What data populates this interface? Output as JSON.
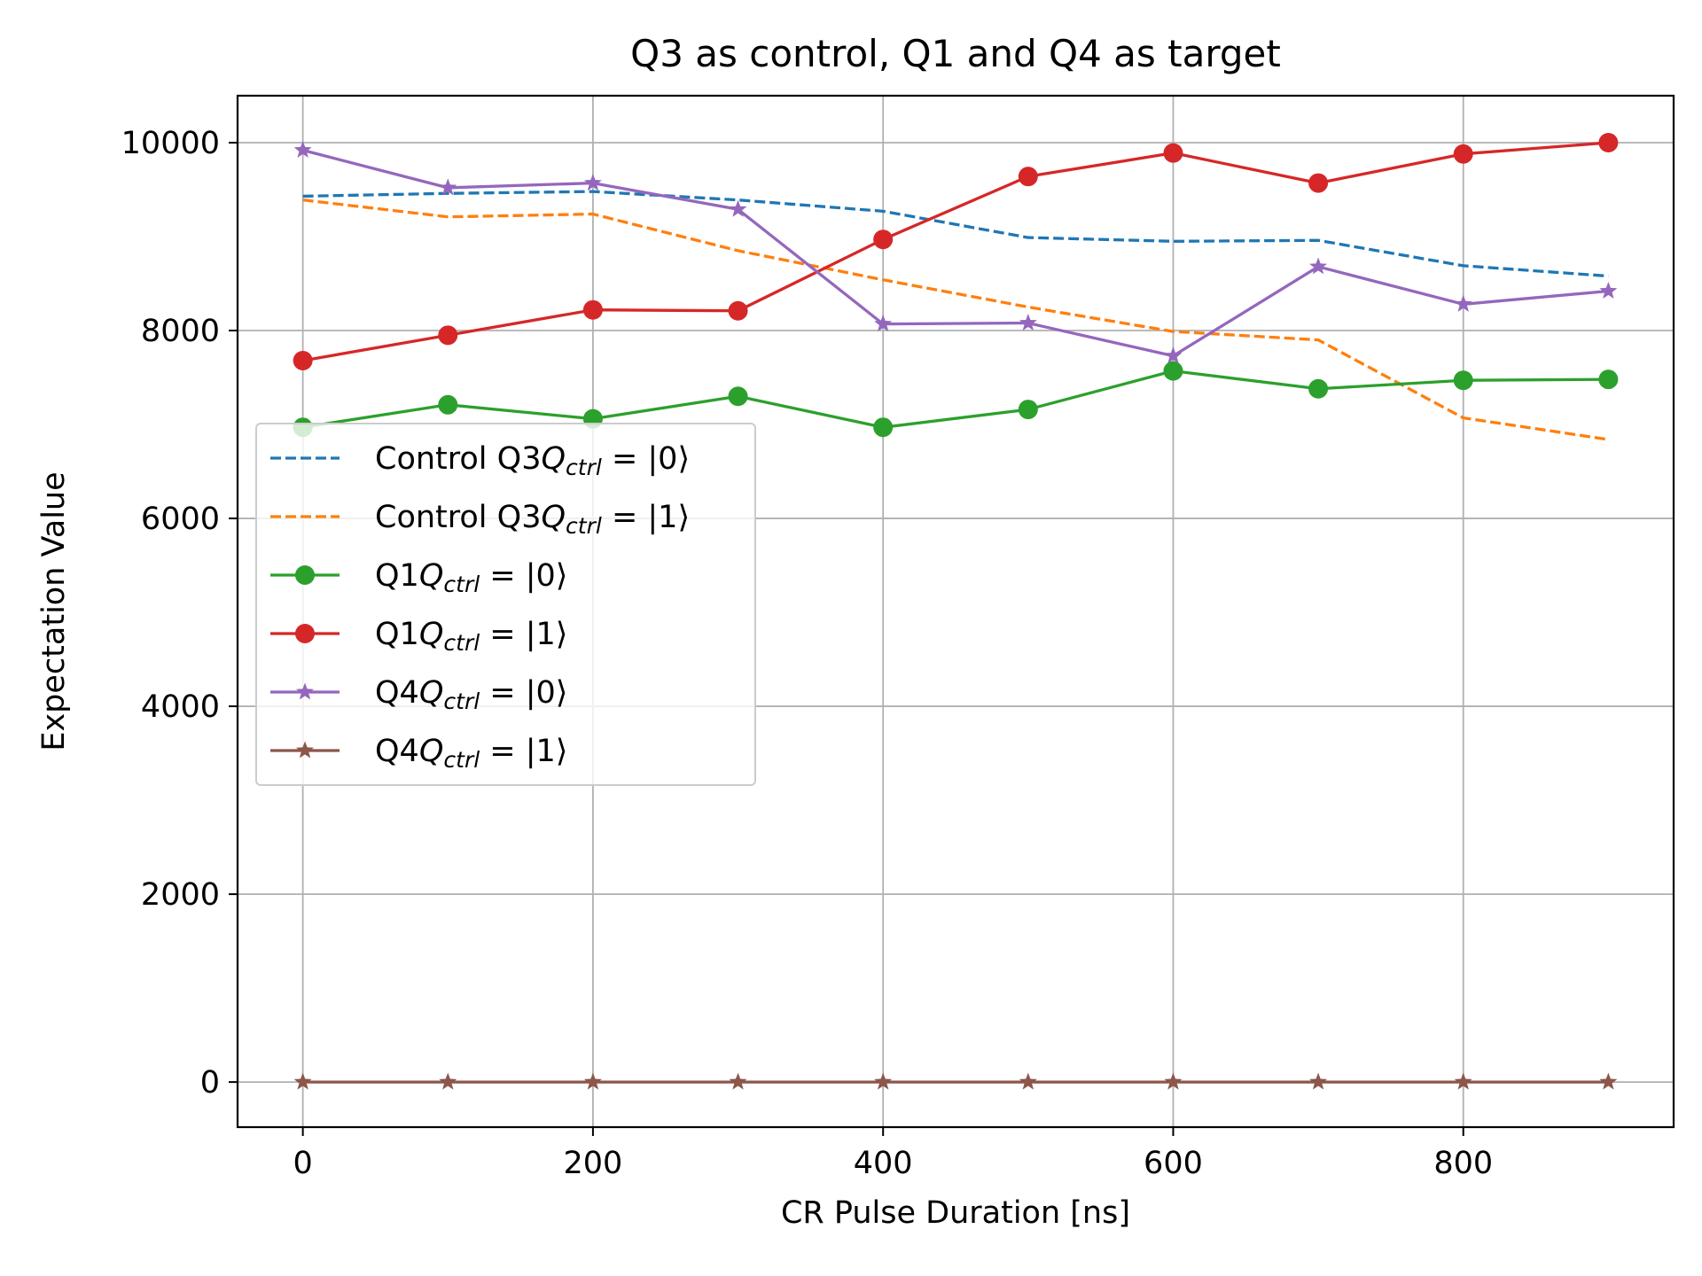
{
  "chart_data": {
    "type": "line",
    "title": "Q3 as control, Q1 and Q4 as target",
    "xlabel": "CR Pulse Duration [ns]",
    "ylabel": "Expectation Value",
    "xlim": [
      -45,
      945
    ],
    "ylim": [
      -480,
      10500
    ],
    "xticks": [
      0,
      200,
      400,
      600,
      800
    ],
    "yticks": [
      0,
      2000,
      4000,
      6000,
      8000,
      10000
    ],
    "grid": true,
    "legend_position": "center-left",
    "x": [
      0,
      100,
      200,
      300,
      400,
      500,
      600,
      700,
      800,
      900
    ],
    "series": [
      {
        "name": "Control Q3",
        "cond": "0",
        "color": "#1f77b4",
        "style": "dashed",
        "marker": "none",
        "values": [
          9430,
          9460,
          9480,
          9390,
          9270,
          8990,
          8950,
          8960,
          8690,
          8580
        ]
      },
      {
        "name": "Control Q3",
        "cond": "1",
        "color": "#ff7f0e",
        "style": "dashed",
        "marker": "none",
        "values": [
          9390,
          9210,
          9240,
          8850,
          8540,
          8250,
          7990,
          7900,
          7070,
          6840
        ]
      },
      {
        "name": "Q1",
        "cond": "0",
        "color": "#2ca02c",
        "style": "solid",
        "marker": "circle",
        "values": [
          6970,
          7210,
          7060,
          7300,
          6970,
          7160,
          7570,
          7380,
          7470,
          7480
        ]
      },
      {
        "name": "Q1",
        "cond": "1",
        "color": "#d62728",
        "style": "solid",
        "marker": "circle",
        "values": [
          7680,
          7950,
          8220,
          8210,
          8970,
          9640,
          9890,
          9570,
          9880,
          10000
        ]
      },
      {
        "name": "Q4",
        "cond": "0",
        "color": "#9467bd",
        "style": "solid",
        "marker": "star",
        "values": [
          9920,
          9520,
          9570,
          9290,
          8070,
          8080,
          7730,
          8680,
          8280,
          8420
        ]
      },
      {
        "name": "Q4",
        "cond": "1",
        "color": "#8c564b",
        "style": "solid",
        "marker": "star",
        "values": [
          0,
          0,
          0,
          0,
          0,
          0,
          0,
          0,
          0,
          0
        ]
      }
    ],
    "legend_math": {
      "q": "Q",
      "sub": "ctrl",
      "eq": " = |",
      "close": "⟩"
    }
  }
}
